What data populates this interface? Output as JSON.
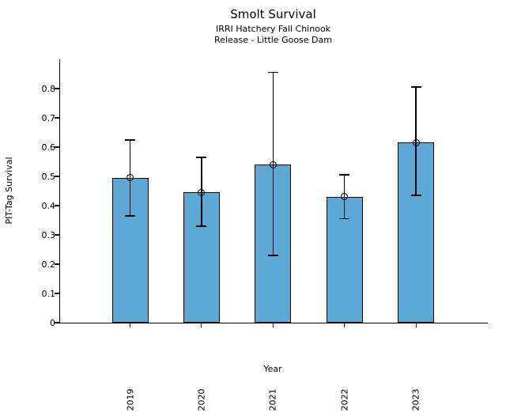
{
  "chart_data": {
    "type": "bar",
    "title": "Smolt Survival",
    "subtitle_lines": [
      "IRRI Hatchery Fall Chinook",
      "Release - Little Goose Dam"
    ],
    "xlabel": "Year",
    "ylabel": "PIT-Tag Survival",
    "categories": [
      "2019",
      "2020",
      "2021",
      "2022",
      "2023"
    ],
    "series": [
      {
        "name": "PIT-Tag Survival",
        "values": [
          0.495,
          0.445,
          0.54,
          0.43,
          0.615
        ],
        "error_low": [
          0.365,
          0.33,
          0.23,
          0.355,
          0.435
        ],
        "error_high": [
          0.625,
          0.565,
          0.855,
          0.505,
          0.805
        ]
      }
    ],
    "ylim": [
      0,
      0.9
    ],
    "ytick_labels": [
      "0",
      "0.1",
      "0.2",
      "0.3",
      "0.4",
      "0.5",
      "0.6",
      "0.7",
      "0.8"
    ],
    "grid": false,
    "legend_position": "none",
    "marker": "open-circle",
    "colors": {
      "bar_fill": "#5BA9D4",
      "bar_edge": "#000000",
      "error_bar": "#000000",
      "text": "#000000",
      "background": "#FFFFFF"
    }
  }
}
